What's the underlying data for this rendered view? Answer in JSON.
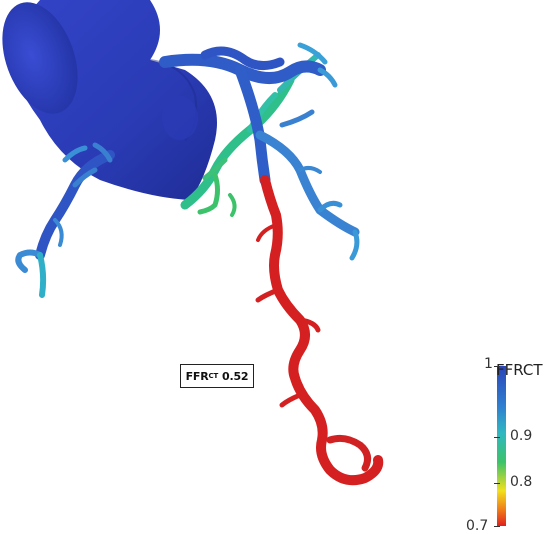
{
  "annotation": {
    "prefix": "FFR",
    "subscript": "CT",
    "value": "0.52"
  },
  "colorbar": {
    "title": "FFRCT",
    "max_label": "1",
    "mid_label": "0.9",
    "low_label": "0.8",
    "min_label": "0.7",
    "range": [
      0.7,
      1.0
    ],
    "colors": {
      "top": "#2a45b8",
      "upper": "#2f7fd0",
      "mid_upper": "#2fb8c0",
      "mid": "#3cc26a",
      "lower": "#f2e01c",
      "bottom": "#e02020"
    }
  },
  "vessel_colors": {
    "aorta": "#2d3fbf",
    "main_branches": "#2f5cc6",
    "distal_branches": "#3aa0d8",
    "green_branch": "#2fbf8a",
    "stenotic_vessel": "#d42020"
  }
}
